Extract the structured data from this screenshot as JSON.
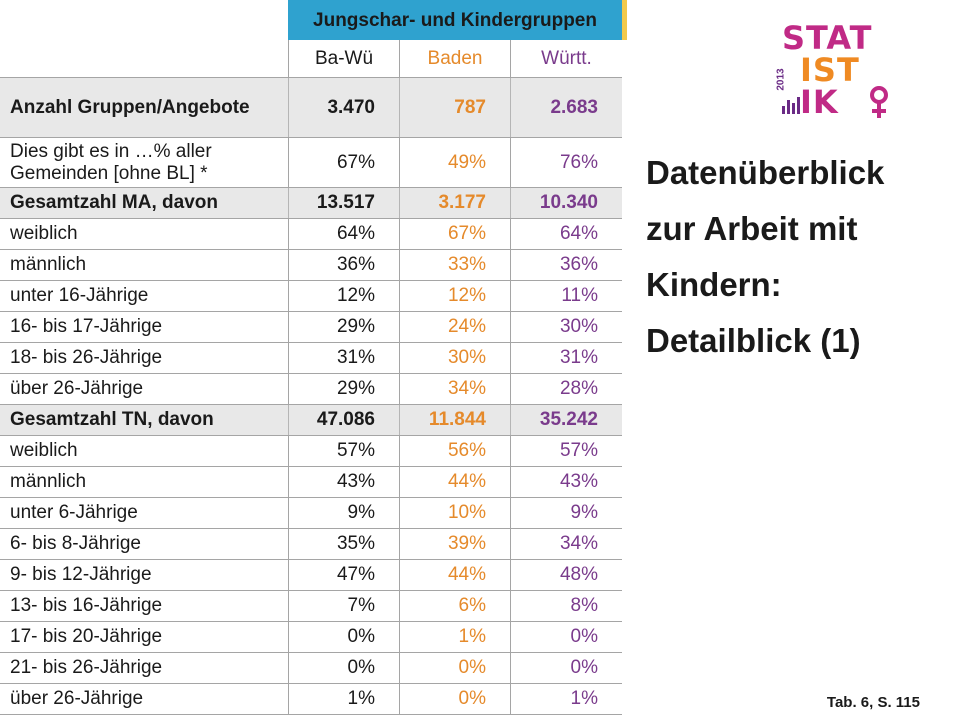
{
  "table": {
    "group_header": "Jungschar- und Kindergruppen",
    "columns": [
      "Ba-Wü",
      "Baden",
      "Württ."
    ],
    "rows": [
      {
        "label": "Anzahl Gruppen/Angebote",
        "values": [
          "3.470",
          "787",
          "2.683"
        ],
        "bold": true
      },
      {
        "label": "Dies gibt es in …% aller Gemeinden [ohne BL] *",
        "values": [
          "67%",
          "49%",
          "76%"
        ],
        "bold": false
      },
      {
        "label": "Gesamtzahl MA, davon",
        "values": [
          "13.517",
          "3.177",
          "10.340"
        ],
        "bold": true
      },
      {
        "label": "weiblich",
        "values": [
          "64%",
          "67%",
          "64%"
        ],
        "bold": false
      },
      {
        "label": "männlich",
        "values": [
          "36%",
          "33%",
          "36%"
        ],
        "bold": false
      },
      {
        "label": "unter 16-Jährige",
        "values": [
          "12%",
          "12%",
          "11%"
        ],
        "bold": false
      },
      {
        "label": "16- bis 17-Jährige",
        "values": [
          "29%",
          "24%",
          "30%"
        ],
        "bold": false
      },
      {
        "label": "18- bis 26-Jährige",
        "values": [
          "31%",
          "30%",
          "31%"
        ],
        "bold": false
      },
      {
        "label": "über 26-Jährige",
        "values": [
          "29%",
          "34%",
          "28%"
        ],
        "bold": false
      },
      {
        "label": "Gesamtzahl TN, davon",
        "values": [
          "47.086",
          "11.844",
          "35.242"
        ],
        "bold": true
      },
      {
        "label": "weiblich",
        "values": [
          "57%",
          "56%",
          "57%"
        ],
        "bold": false
      },
      {
        "label": "männlich",
        "values": [
          "43%",
          "44%",
          "43%"
        ],
        "bold": false
      },
      {
        "label": "unter 6-Jährige",
        "values": [
          "9%",
          "10%",
          "9%"
        ],
        "bold": false
      },
      {
        "label": "6- bis 8-Jährige",
        "values": [
          "35%",
          "39%",
          "34%"
        ],
        "bold": false
      },
      {
        "label": "9- bis 12-Jährige",
        "values": [
          "47%",
          "44%",
          "48%"
        ],
        "bold": false
      },
      {
        "label": "13- bis 16-Jährige",
        "values": [
          "7%",
          "6%",
          "8%"
        ],
        "bold": false
      },
      {
        "label": "17- bis 20-Jährige",
        "values": [
          "0%",
          "1%",
          "0%"
        ],
        "bold": false
      },
      {
        "label": "21- bis 26-Jährige",
        "values": [
          "0%",
          "0%",
          "0%"
        ],
        "bold": false
      },
      {
        "label": "über 26-Jährige",
        "values": [
          "1%",
          "0%",
          "1%"
        ],
        "bold": false
      }
    ]
  },
  "logo": {
    "lines": [
      "STAT",
      "IST",
      "IK"
    ],
    "year": "2013"
  },
  "title_lines": [
    "Datenüberblick",
    "zur Arbeit mit",
    "Kindern:",
    "Detailblick (1)"
  ],
  "reference": "Tab. 6, S. 115",
  "colors": {
    "header_bar": "#2fa2cf",
    "baden": "#e58a2b",
    "wuertt": "#7a3b8c",
    "logo_magenta": "#c02a86",
    "logo_orange": "#ef8a23"
  }
}
